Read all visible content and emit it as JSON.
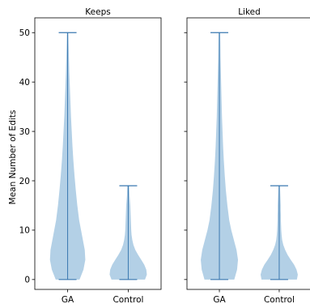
{
  "chart_data": {
    "type": "violin",
    "ylabel": "Mean Number of Edits",
    "ylim": [
      -2,
      53
    ],
    "yticks": [
      0,
      10,
      20,
      30,
      40,
      50
    ],
    "categories": [
      "GA",
      "Control"
    ],
    "body_color": "#a6c8e2",
    "line_color": "#3a78b0",
    "panels": [
      {
        "title": "Keeps",
        "violins": [
          {
            "category": "GA",
            "min": 0,
            "max": 50,
            "density": [
              [
                0,
                0.64
              ],
              [
                2,
                0.85
              ],
              [
                4,
                0.95
              ],
              [
                6,
                0.92
              ],
              [
                8,
                0.82
              ],
              [
                10,
                0.72
              ],
              [
                12,
                0.62
              ],
              [
                15,
                0.52
              ],
              [
                18,
                0.44
              ],
              [
                21,
                0.37
              ],
              [
                24,
                0.31
              ],
              [
                27,
                0.26
              ],
              [
                30,
                0.22
              ],
              [
                33,
                0.18
              ],
              [
                36,
                0.15
              ],
              [
                39,
                0.12
              ],
              [
                42,
                0.09
              ],
              [
                45,
                0.07
              ],
              [
                48,
                0.05
              ],
              [
                50,
                0.04
              ]
            ]
          },
          {
            "category": "Control",
            "min": 0,
            "max": 19,
            "density": [
              [
                0,
                0.9
              ],
              [
                1,
                1.0
              ],
              [
                2,
                0.97
              ],
              [
                3,
                0.86
              ],
              [
                4,
                0.7
              ],
              [
                5,
                0.53
              ],
              [
                6,
                0.38
              ],
              [
                7,
                0.28
              ],
              [
                8,
                0.22
              ],
              [
                9,
                0.18
              ],
              [
                10,
                0.16
              ],
              [
                11,
                0.15
              ],
              [
                12,
                0.14
              ],
              [
                13,
                0.13
              ],
              [
                14,
                0.12
              ],
              [
                15,
                0.11
              ],
              [
                16,
                0.09
              ],
              [
                17,
                0.07
              ],
              [
                18,
                0.06
              ],
              [
                19,
                0.05
              ]
            ]
          }
        ]
      },
      {
        "title": "Liked",
        "violins": [
          {
            "category": "GA",
            "min": 0,
            "max": 50,
            "density": [
              [
                0,
                0.8
              ],
              [
                2,
                0.95
              ],
              [
                4,
                1.0
              ],
              [
                6,
                0.92
              ],
              [
                8,
                0.78
              ],
              [
                10,
                0.64
              ],
              [
                12,
                0.53
              ],
              [
                15,
                0.43
              ],
              [
                18,
                0.35
              ],
              [
                21,
                0.29
              ],
              [
                24,
                0.24
              ],
              [
                27,
                0.2
              ],
              [
                30,
                0.17
              ],
              [
                33,
                0.14
              ],
              [
                36,
                0.12
              ],
              [
                39,
                0.1
              ],
              [
                42,
                0.08
              ],
              [
                45,
                0.06
              ],
              [
                48,
                0.05
              ],
              [
                50,
                0.04
              ]
            ]
          },
          {
            "category": "Control",
            "min": 0,
            "max": 19,
            "density": [
              [
                0,
                0.95
              ],
              [
                1,
                1.0
              ],
              [
                2,
                0.93
              ],
              [
                3,
                0.8
              ],
              [
                4,
                0.62
              ],
              [
                5,
                0.45
              ],
              [
                6,
                0.32
              ],
              [
                7,
                0.22
              ],
              [
                8,
                0.16
              ],
              [
                9,
                0.13
              ],
              [
                10,
                0.11
              ],
              [
                11,
                0.1
              ],
              [
                12,
                0.09
              ],
              [
                13,
                0.09
              ],
              [
                14,
                0.08
              ],
              [
                15,
                0.08
              ],
              [
                16,
                0.07
              ],
              [
                17,
                0.06
              ],
              [
                18,
                0.05
              ],
              [
                19,
                0.04
              ]
            ]
          }
        ]
      }
    ]
  }
}
